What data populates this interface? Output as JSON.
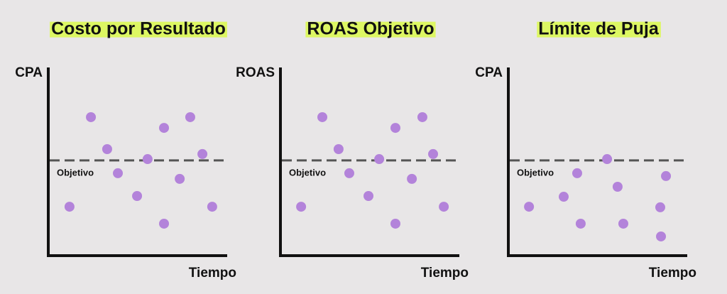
{
  "chart_data": [
    {
      "type": "scatter",
      "title": "Costo por Resultado",
      "y_label": "CPA",
      "x_label": "Tiempo",
      "color": "#b383da",
      "xlim": [
        0,
        100
      ],
      "ylim": [
        0,
        100
      ],
      "target": {
        "label": "Objetivo",
        "value": 50.6
      },
      "x": [
        11.5,
        23.1,
        31.9,
        37.7,
        48.1,
        53.8,
        62.7,
        62.7,
        71.2,
        76.9,
        83.5,
        88.8
      ],
      "y": [
        26,
        73.6,
        56.6,
        43.8,
        31.7,
        51.3,
        67.9,
        17,
        40.8,
        73.6,
        54,
        26
      ]
    },
    {
      "type": "scatter",
      "title": "ROAS Objetivo",
      "y_label": "ROAS",
      "x_label": "Tiempo",
      "color": "#b383da",
      "xlim": [
        0,
        100
      ],
      "ylim": [
        0,
        100
      ],
      "target": {
        "label": "Objetivo",
        "value": 50.6
      },
      "x": [
        11.2,
        22.7,
        31.5,
        37.3,
        47.7,
        53.5,
        62.3,
        62.3,
        71.2,
        76.9,
        82.7,
        88.5
      ],
      "y": [
        26,
        73.6,
        56.6,
        43.8,
        31.7,
        51.3,
        67.9,
        17,
        40.8,
        73.6,
        54,
        26
      ]
    },
    {
      "type": "scatter",
      "title": "Límite de Puja",
      "y_label": "CPA",
      "x_label": "Tiempo",
      "color": "#b383da",
      "xlim": [
        0,
        100
      ],
      "ylim": [
        0,
        100
      ],
      "target": {
        "label": "Objetivo",
        "value": 50.6
      },
      "x": [
        11.2,
        30,
        37.3,
        39.2,
        53.5,
        59.2,
        62.3,
        82.3,
        82.7,
        85.4
      ],
      "y": [
        26,
        31.3,
        43.8,
        17,
        51.3,
        36.6,
        17,
        25.7,
        10.2,
        42.3
      ]
    }
  ]
}
